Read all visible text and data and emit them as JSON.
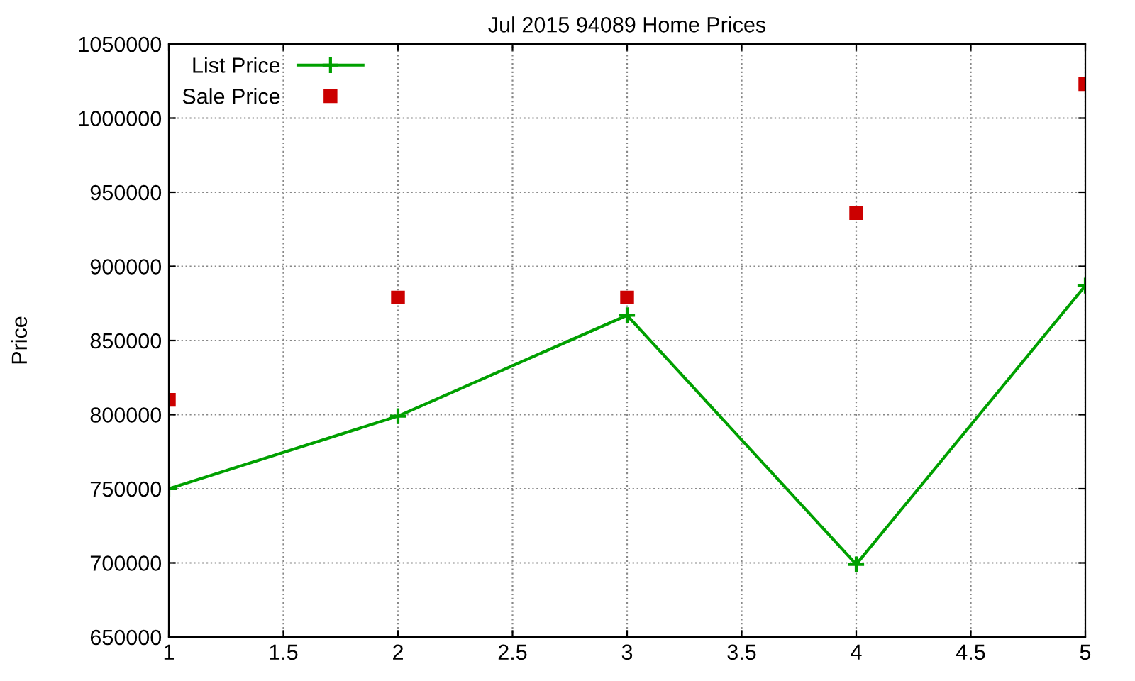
{
  "chart_data": {
    "type": "line",
    "title": "Jul 2015 94089 Home Prices",
    "ylabel": "Price",
    "x": [
      1,
      2,
      3,
      4,
      5
    ],
    "series": [
      {
        "name": "List Price",
        "color": "#00a000",
        "marker": "cross",
        "values": [
          750000,
          799000,
          867000,
          699000,
          887000
        ]
      },
      {
        "name": "Sale Price",
        "type": "scatter",
        "color": "#cc0000",
        "marker": "square",
        "values": [
          810000,
          879000,
          879000,
          936000,
          1023000
        ]
      }
    ],
    "xlim": [
      1,
      5
    ],
    "xticks": [
      1,
      1.5,
      2,
      2.5,
      3,
      3.5,
      4,
      4.5,
      5
    ],
    "ylim": [
      650000,
      1050000
    ],
    "yticks": [
      650000,
      700000,
      750000,
      800000,
      850000,
      900000,
      950000,
      1000000,
      1050000
    ],
    "grid": true,
    "legend": "top left"
  }
}
